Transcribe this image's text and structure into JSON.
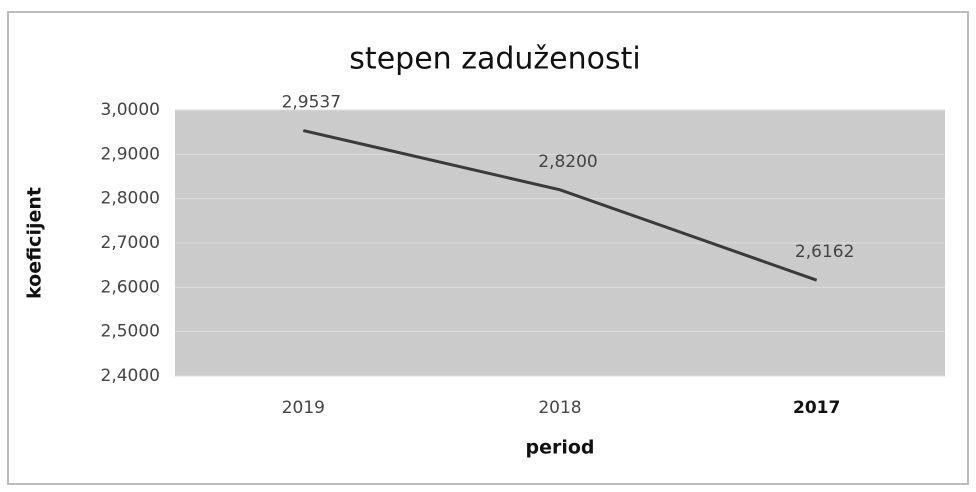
{
  "chart_data": {
    "type": "line",
    "title": "stepen zaduženosti",
    "x_label": "period",
    "y_label": "koeficijent",
    "categories": [
      "2019",
      "2018",
      "2017"
    ],
    "series": [
      {
        "name": "koeficijent",
        "color": "#3a3a3a",
        "values": [
          2.9537,
          2.82,
          2.6162
        ],
        "value_labels": [
          "2,9537",
          "2,8200",
          "2,6162"
        ]
      }
    ],
    "ylim": [
      2.4,
      3.0
    ],
    "yticks": [
      {
        "value": 2.4,
        "label": "2,4000"
      },
      {
        "value": 2.5,
        "label": "2,5000"
      },
      {
        "value": 2.6,
        "label": "2,6000"
      },
      {
        "value": 2.7,
        "label": "2,7000"
      },
      {
        "value": 2.8,
        "label": "2,8000"
      },
      {
        "value": 2.9,
        "label": "2,9000"
      },
      {
        "value": 3.0,
        "label": "3,0000"
      }
    ],
    "grid": true
  }
}
